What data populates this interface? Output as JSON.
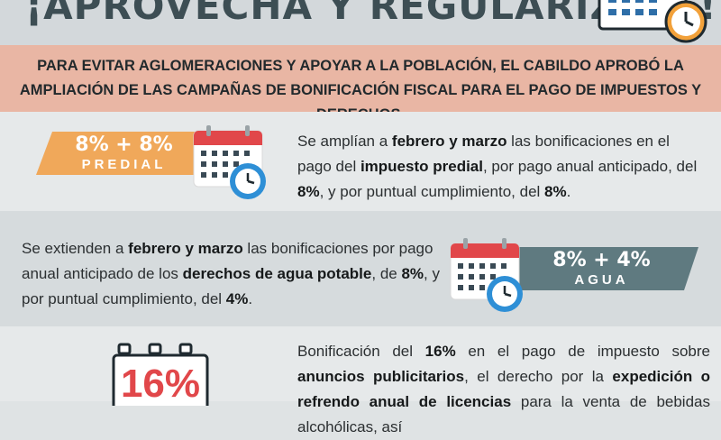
{
  "header": {
    "title": "¡APROVECHA Y REGULARÍZATE!"
  },
  "intro": "PARA EVITAR AGLOMERACIONES Y APOYAR A LA POBLACIÓN, EL CABILDO APROBÓ LA AMPLIACIÓN DE LAS CAMPAÑAS DE BONIFICACIÓN FISCAL PARA EL PAGO DE IMPUESTOS Y DERECHOS.",
  "predial": {
    "pct": "8% + 8%",
    "label": "PREDIAL",
    "t1": "Se amplían a ",
    "b1": "febrero y marzo",
    "t2": " las bonificaciones en el pago del ",
    "b2": "impuesto predial",
    "t3": ", por pago anual anticipado, del ",
    "b3": "8%",
    "t4": ", y por puntual cumplimiento, del ",
    "b4": "8%",
    "t5": "."
  },
  "agua": {
    "pct": "8% + 4%",
    "label": "AGUA",
    "t1": "Se extienden a ",
    "b1": "febrero y marzo",
    "t2": " las bonificaciones por pago anual anticipado de los ",
    "b2": "derechos de agua potable",
    "t3": ", de ",
    "b3": "8%",
    "t4": ", y por puntual cumplimiento, del ",
    "b4": "4%",
    "t5": "."
  },
  "anuncios": {
    "pct": "16%",
    "t1": "Bonificación del ",
    "b1": "16%",
    "t2": " en el pago de impuesto sobre ",
    "b2": "anuncios publicitarios",
    "t3": ", el derecho por la ",
    "b3": "expedición o refrendo anual de licencias",
    "t4": " para la venta de bebidas alcohólicas, así"
  },
  "colors": {
    "accent_orange": "#f0a85a",
    "accent_slate": "#5f7a80",
    "calendar_red": "#e1474a",
    "clock_blue": "#2e8fd6"
  },
  "icons": [
    "calendar-clock-icon",
    "battery-icon"
  ]
}
